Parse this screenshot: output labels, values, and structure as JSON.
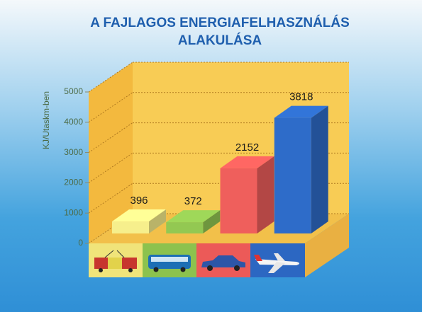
{
  "chart_data": {
    "type": "bar3d",
    "title": "A FAJLAGOS ENERGIAFELHASZNÁLÁS",
    "subtitle": "ALAKULÁSA",
    "y_label": "KJ/Utaskm-ben",
    "categories": [
      null,
      null,
      null,
      null
    ],
    "values": [
      396,
      372,
      2152,
      3818
    ],
    "colors": [
      "#f6ef8c",
      "#93c852",
      "#ef5f5c",
      "#2e6cc9"
    ],
    "ylim": [
      0,
      5000
    ],
    "yticks": [
      0,
      1000,
      2000,
      3000,
      4000,
      5000
    ],
    "grid": true
  }
}
